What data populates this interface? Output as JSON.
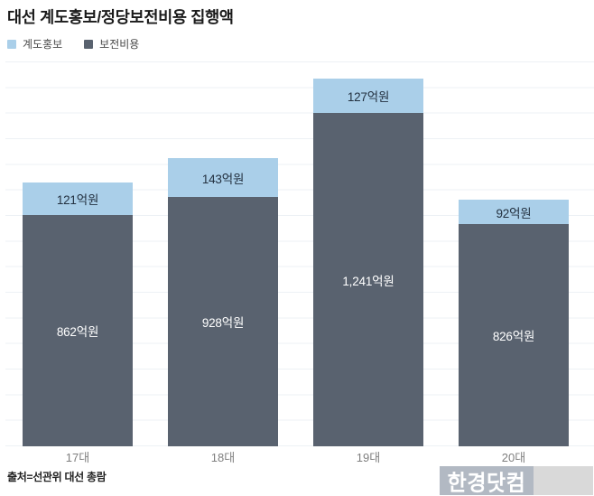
{
  "header": {
    "title": "대선 계도홍보/정당보전비용 집행액"
  },
  "legend": {
    "items": [
      {
        "label": "계도홍보",
        "color": "#aacfe9"
      },
      {
        "label": "보전비용",
        "color": "#59626f"
      }
    ]
  },
  "chart_data": {
    "type": "bar",
    "stacked": true,
    "orientation": "vertical",
    "title": "대선 계도홍보/정당보전비용 집행액",
    "unit": "억원",
    "categories": [
      "17대",
      "18대",
      "19대",
      "20대"
    ],
    "series": [
      {
        "name": "계도홍보",
        "color": "#aacfe9",
        "text_color": "#233140",
        "values": [
          121,
          143,
          127,
          92
        ],
        "labels": [
          "121억원",
          "143억원",
          "127억원",
          "92억원"
        ]
      },
      {
        "name": "보전비용",
        "color": "#59626f",
        "text_color": "#ffffff",
        "values": [
          862,
          928,
          1241,
          826
        ],
        "labels": [
          "862억원",
          "928억원",
          "1,241억원",
          "826억원"
        ]
      }
    ],
    "totals": [
      983,
      1071,
      1368,
      918
    ],
    "ylim": [
      0,
      1450
    ],
    "grid": true,
    "legend_position": "top-left"
  },
  "footer": {
    "source": "출처=선관위 대선 총람",
    "logo_text": "한경닷컴"
  }
}
